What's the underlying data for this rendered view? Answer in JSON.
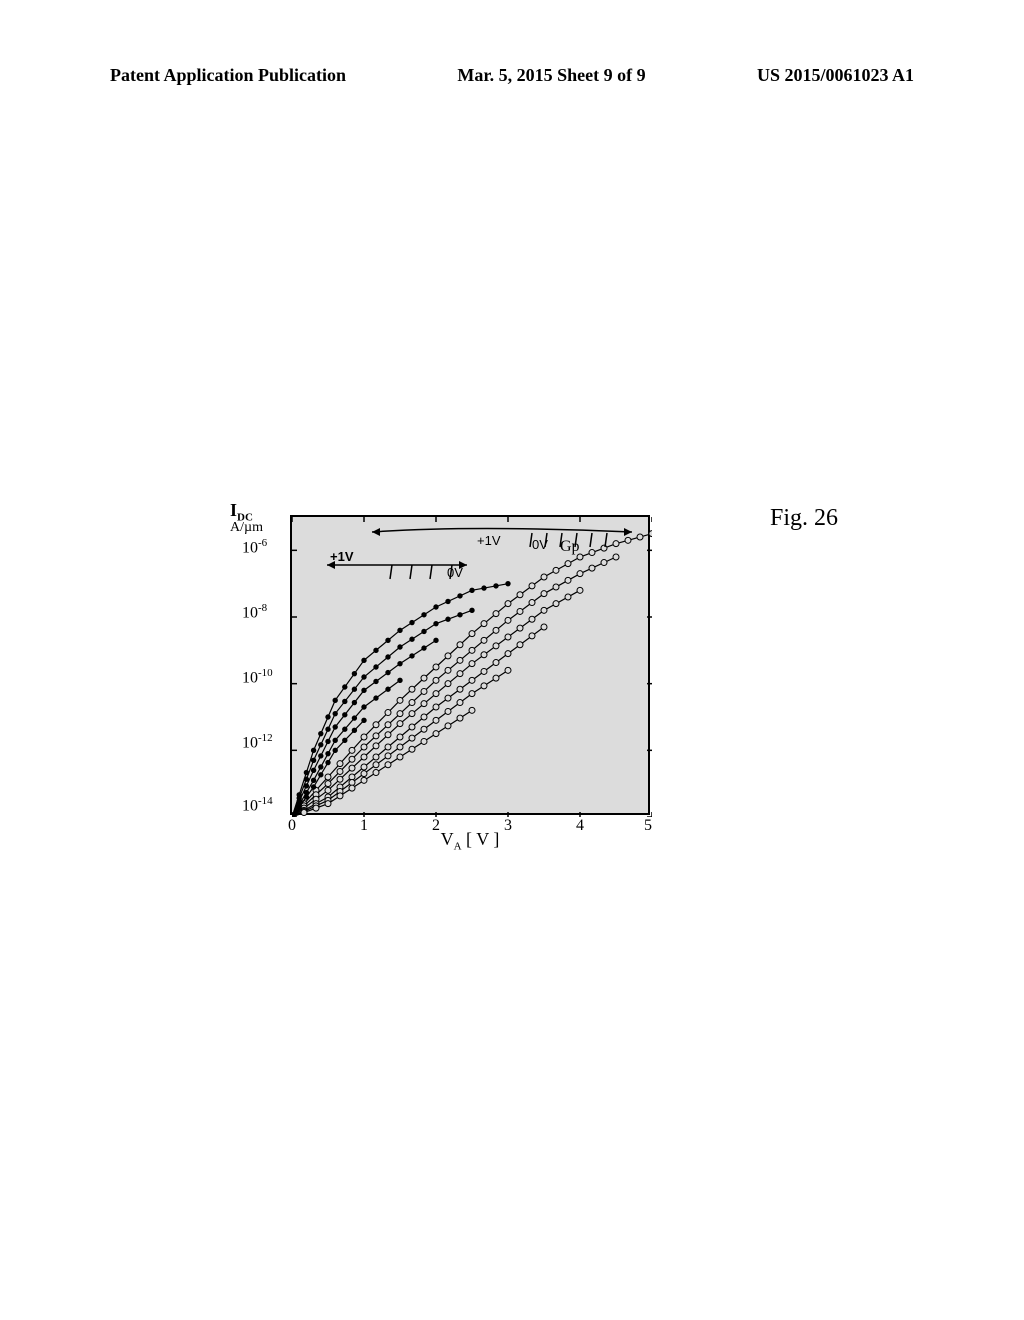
{
  "header": {
    "left": "Patent Application Publication",
    "center": "Mar. 5, 2015  Sheet 9 of 9",
    "right": "US 2015/0061023 A1"
  },
  "figure_label": "Fig. 26",
  "chart": {
    "type": "line",
    "background_color": "#dcdcdc",
    "border_color": "#000000",
    "y_axis": {
      "label": "I",
      "label_sub": "DC",
      "unit": "A/µm",
      "scale": "log",
      "ticks": [
        "10⁻⁶",
        "10⁻⁸",
        "10⁻¹⁰",
        "10⁻¹²",
        "10⁻¹⁴"
      ],
      "tick_exponents": [
        -6,
        -8,
        -10,
        -12,
        -14
      ],
      "ylim": [
        -14,
        -5
      ]
    },
    "x_axis": {
      "label": "V",
      "label_sub": "A",
      "label_suffix": " [ V ]",
      "ticks": [
        0,
        1,
        2,
        3,
        4,
        5
      ],
      "xlim": [
        0,
        5
      ]
    },
    "annotations": {
      "top_arrow_left": "+1V",
      "top_arrow_right": "0V",
      "inner_arrow_left": "+1V",
      "inner_arrow_right": "0V",
      "gp": "Gp"
    },
    "open_series": [
      {
        "x": [
          0,
          0.5,
          1.0,
          1.5,
          2.0,
          2.5,
          3.0,
          3.5,
          4.0,
          4.5,
          5.0
        ],
        "y": [
          -14,
          -12.8,
          -11.6,
          -10.5,
          -9.5,
          -8.5,
          -7.6,
          -6.8,
          -6.2,
          -5.8,
          -5.5
        ]
      },
      {
        "x": [
          0,
          0.5,
          1.0,
          1.5,
          2.0,
          2.5,
          3.0,
          3.5,
          4.0,
          4.5
        ],
        "y": [
          -14,
          -13.0,
          -11.9,
          -10.9,
          -9.9,
          -9.0,
          -8.1,
          -7.3,
          -6.7,
          -6.2
        ]
      },
      {
        "x": [
          0,
          0.5,
          1.0,
          1.5,
          2.0,
          2.5,
          3.0,
          3.5,
          4.0
        ],
        "y": [
          -14,
          -13.2,
          -12.2,
          -11.2,
          -10.3,
          -9.4,
          -8.6,
          -7.8,
          -7.2
        ]
      },
      {
        "x": [
          0,
          0.5,
          1.0,
          1.5,
          2.0,
          2.5,
          3.0,
          3.5
        ],
        "y": [
          -14,
          -13.4,
          -12.5,
          -11.6,
          -10.7,
          -9.9,
          -9.1,
          -8.3
        ]
      },
      {
        "x": [
          0,
          0.5,
          1.0,
          1.5,
          2.0,
          2.5,
          3.0
        ],
        "y": [
          -14,
          -13.5,
          -12.7,
          -11.9,
          -11.1,
          -10.3,
          -9.6
        ]
      },
      {
        "x": [
          0,
          0.5,
          1.0,
          1.5,
          2.0,
          2.5
        ],
        "y": [
          -14,
          -13.6,
          -12.9,
          -12.2,
          -11.5,
          -10.8
        ]
      }
    ],
    "filled_series": [
      {
        "x": [
          0,
          0.3,
          0.6,
          1.0,
          1.5,
          2.0,
          2.5,
          3.0
        ],
        "y": [
          -14,
          -12.0,
          -10.5,
          -9.3,
          -8.4,
          -7.7,
          -7.2,
          -7.0
        ]
      },
      {
        "x": [
          0,
          0.3,
          0.6,
          1.0,
          1.5,
          2.0,
          2.5
        ],
        "y": [
          -14,
          -12.3,
          -10.9,
          -9.8,
          -8.9,
          -8.2,
          -7.8
        ]
      },
      {
        "x": [
          0,
          0.3,
          0.6,
          1.0,
          1.5,
          2.0
        ],
        "y": [
          -14,
          -12.6,
          -11.3,
          -10.2,
          -9.4,
          -8.7
        ]
      },
      {
        "x": [
          0,
          0.3,
          0.6,
          1.0,
          1.5
        ],
        "y": [
          -14,
          -12.9,
          -11.7,
          -10.7,
          -9.9
        ]
      },
      {
        "x": [
          0,
          0.3,
          0.6,
          1.0
        ],
        "y": [
          -14,
          -13.1,
          -12.0,
          -11.1
        ]
      }
    ],
    "marker_radius_open": 3.0,
    "marker_radius_filled": 2.2
  }
}
